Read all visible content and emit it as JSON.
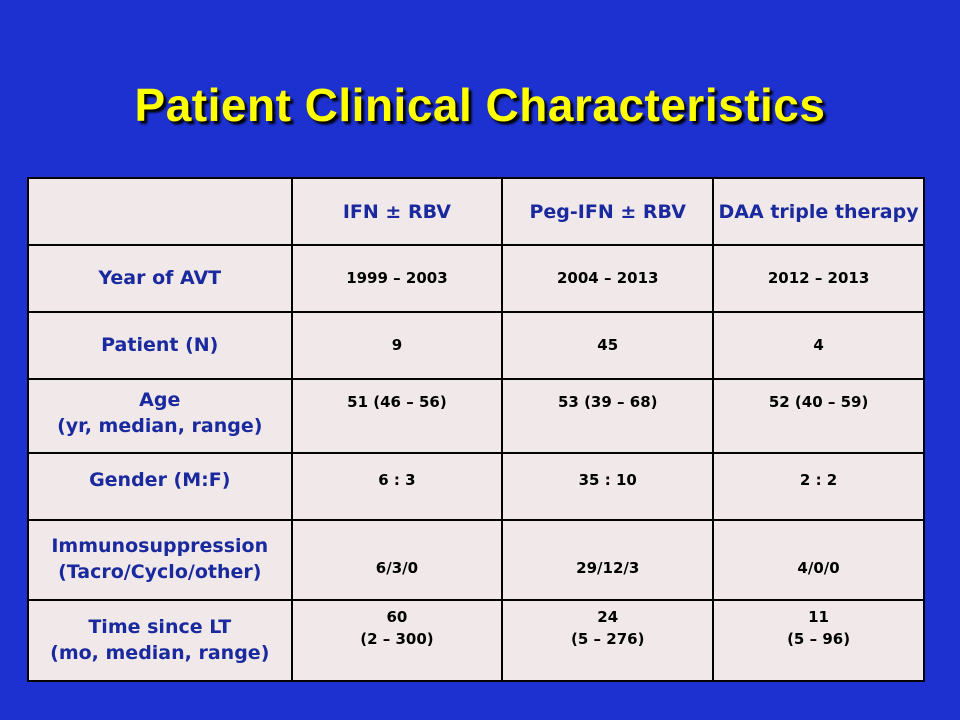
{
  "slide": {
    "title": "Patient Clinical Characteristics"
  },
  "table": {
    "headers": [
      "",
      "IFN ± RBV",
      "Peg-IFN ± RBV",
      "DAA triple therapy"
    ],
    "rows": [
      {
        "label": [
          "Year of AVT"
        ],
        "cells": [
          [
            "1999 – 2003"
          ],
          [
            "2004 – 2013"
          ],
          [
            "2012 – 2013"
          ]
        ]
      },
      {
        "label": [
          "Patient (N)"
        ],
        "cells": [
          [
            "9"
          ],
          [
            "45"
          ],
          [
            "4"
          ]
        ]
      },
      {
        "label": [
          "Age",
          "(yr, median, range)"
        ],
        "cells": [
          [
            "51 (46 – 56)"
          ],
          [
            "53 (39 – 68)"
          ],
          [
            "52 (40 – 59)"
          ]
        ]
      },
      {
        "label": [
          "Gender (M:F)"
        ],
        "cells": [
          [
            "6 : 3"
          ],
          [
            "35 : 10"
          ],
          [
            "2 : 2"
          ]
        ]
      },
      {
        "label": [
          "Immunosuppression",
          "(Tacro/Cyclo/other)"
        ],
        "cells": [
          [
            "6/3/0"
          ],
          [
            "29/12/3"
          ],
          [
            "4/0/0"
          ]
        ]
      },
      {
        "label": [
          "Time since LT",
          "(mo, median, range)"
        ],
        "cells": [
          [
            "60",
            "(2 – 300)"
          ],
          [
            "24",
            "(5 – 276)"
          ],
          [
            "11",
            "(5 – 96)"
          ]
        ]
      }
    ]
  },
  "colors": {
    "background": "#1c31d0",
    "title": "#ffff00",
    "label_text": "#1a2a9e",
    "table_fill": "#f1e9e9"
  }
}
